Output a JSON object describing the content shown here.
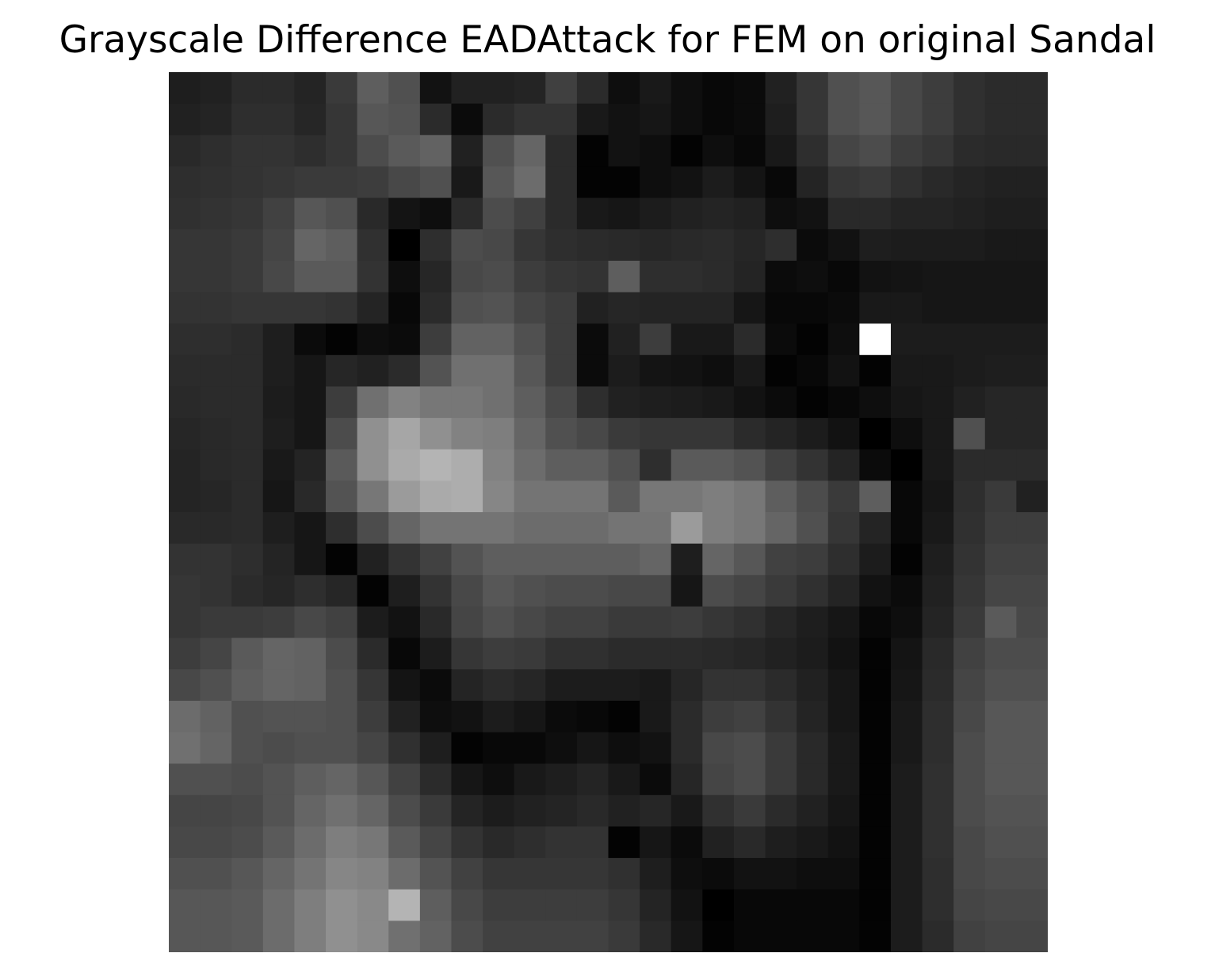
{
  "chart_data": {
    "type": "heatmap",
    "title": "Grayscale Difference EADAttack for FEM on original Sandal",
    "colormap": "gray",
    "grid": false,
    "axes_visible": false,
    "xlabel": "",
    "ylabel": "",
    "rows": 28,
    "cols": 28,
    "value_range": [
      0,
      255
    ],
    "values": [
      [
        30,
        33,
        43,
        43,
        36,
        58,
        94,
        80,
        18,
        33,
        33,
        36,
        64,
        43,
        14,
        25,
        14,
        8,
        11,
        33,
        54,
        80,
        87,
        72,
        61,
        48,
        43,
        43
      ],
      [
        33,
        36,
        46,
        46,
        38,
        54,
        87,
        83,
        43,
        11,
        43,
        51,
        51,
        25,
        18,
        22,
        14,
        8,
        11,
        30,
        54,
        80,
        87,
        72,
        61,
        48,
        43,
        43
      ],
      [
        41,
        46,
        51,
        51,
        46,
        54,
        76,
        90,
        98,
        33,
        80,
        101,
        43,
        3,
        18,
        14,
        3,
        14,
        8,
        25,
        46,
        69,
        76,
        61,
        54,
        43,
        41,
        41
      ],
      [
        46,
        48,
        51,
        54,
        58,
        58,
        61,
        72,
        80,
        25,
        87,
        108,
        43,
        3,
        3,
        14,
        18,
        28,
        20,
        8,
        36,
        54,
        58,
        48,
        41,
        36,
        33,
        33
      ],
      [
        48,
        51,
        54,
        65,
        87,
        80,
        41,
        20,
        14,
        43,
        76,
        64,
        43,
        25,
        22,
        28,
        33,
        36,
        33,
        14,
        18,
        41,
        41,
        36,
        36,
        33,
        30,
        30
      ],
      [
        54,
        54,
        58,
        69,
        101,
        94,
        48,
        0,
        46,
        76,
        72,
        54,
        46,
        43,
        41,
        38,
        41,
        43,
        38,
        46,
        11,
        18,
        30,
        28,
        28,
        28,
        25,
        25
      ],
      [
        54,
        54,
        58,
        72,
        90,
        90,
        51,
        14,
        38,
        72,
        76,
        61,
        54,
        51,
        94,
        46,
        46,
        43,
        36,
        11,
        14,
        8,
        18,
        20,
        22,
        22,
        22,
        22
      ],
      [
        51,
        51,
        54,
        54,
        54,
        51,
        36,
        8,
        43,
        80,
        83,
        69,
        61,
        33,
        38,
        36,
        36,
        36,
        22,
        8,
        8,
        11,
        25,
        25,
        22,
        22,
        22,
        22
      ],
      [
        46,
        46,
        43,
        30,
        11,
        3,
        14,
        11,
        61,
        98,
        98,
        80,
        61,
        11,
        33,
        61,
        25,
        25,
        43,
        11,
        3,
        14,
        255,
        28,
        28,
        28,
        28,
        28
      ],
      [
        43,
        43,
        43,
        30,
        22,
        38,
        33,
        43,
        83,
        112,
        112,
        87,
        61,
        11,
        28,
        20,
        18,
        14,
        25,
        3,
        8,
        18,
        3,
        25,
        25,
        28,
        30,
        30
      ],
      [
        41,
        43,
        43,
        28,
        22,
        61,
        112,
        130,
        119,
        119,
        112,
        94,
        72,
        46,
        33,
        30,
        28,
        25,
        18,
        11,
        3,
        8,
        14,
        22,
        25,
        33,
        38,
        38
      ],
      [
        38,
        41,
        43,
        30,
        22,
        76,
        144,
        166,
        144,
        130,
        126,
        101,
        80,
        72,
        58,
        54,
        54,
        54,
        43,
        36,
        28,
        18,
        0,
        14,
        25,
        80,
        38,
        38
      ],
      [
        36,
        41,
        43,
        25,
        36,
        90,
        144,
        170,
        180,
        173,
        130,
        108,
        94,
        94,
        80,
        46,
        90,
        90,
        83,
        65,
        51,
        36,
        11,
        0,
        25,
        43,
        43,
        43
      ],
      [
        36,
        38,
        43,
        22,
        41,
        83,
        119,
        155,
        170,
        173,
        134,
        116,
        116,
        116,
        90,
        119,
        119,
        126,
        119,
        94,
        76,
        58,
        94,
        8,
        22,
        46,
        58,
        33
      ],
      [
        41,
        41,
        43,
        30,
        22,
        46,
        76,
        101,
        116,
        116,
        116,
        108,
        108,
        108,
        116,
        116,
        155,
        126,
        119,
        101,
        80,
        54,
        36,
        8,
        25,
        48,
        61,
        61
      ],
      [
        51,
        51,
        46,
        36,
        22,
        3,
        33,
        51,
        65,
        83,
        94,
        94,
        94,
        94,
        94,
        101,
        30,
        101,
        87,
        65,
        61,
        46,
        28,
        3,
        30,
        51,
        65,
        65
      ],
      [
        54,
        51,
        43,
        38,
        46,
        38,
        3,
        30,
        51,
        72,
        87,
        80,
        76,
        76,
        72,
        72,
        22,
        76,
        69,
        58,
        48,
        36,
        18,
        11,
        33,
        54,
        69,
        69
      ],
      [
        54,
        58,
        58,
        61,
        72,
        65,
        28,
        18,
        41,
        69,
        80,
        72,
        65,
        65,
        58,
        58,
        61,
        54,
        48,
        38,
        30,
        22,
        8,
        14,
        36,
        58,
        90,
        72
      ],
      [
        61,
        69,
        90,
        101,
        98,
        76,
        43,
        8,
        28,
        54,
        61,
        58,
        48,
        48,
        43,
        43,
        43,
        41,
        38,
        33,
        28,
        18,
        3,
        20,
        41,
        65,
        76,
        76
      ],
      [
        72,
        80,
        94,
        101,
        98,
        80,
        54,
        20,
        11,
        36,
        43,
        38,
        28,
        28,
        28,
        25,
        38,
        51,
        51,
        43,
        33,
        22,
        3,
        22,
        43,
        69,
        80,
        80
      ],
      [
        108,
        98,
        80,
        83,
        83,
        80,
        61,
        33,
        14,
        18,
        28,
        22,
        11,
        8,
        3,
        25,
        43,
        61,
        65,
        51,
        36,
        22,
        3,
        25,
        46,
        72,
        87,
        87
      ],
      [
        112,
        101,
        80,
        76,
        80,
        80,
        69,
        48,
        30,
        3,
        8,
        8,
        14,
        22,
        14,
        18,
        43,
        72,
        76,
        58,
        41,
        25,
        3,
        25,
        46,
        76,
        87,
        87
      ],
      [
        80,
        80,
        76,
        83,
        94,
        101,
        87,
        65,
        43,
        22,
        14,
        25,
        30,
        36,
        25,
        11,
        38,
        69,
        76,
        58,
        41,
        25,
        3,
        28,
        48,
        76,
        87,
        87
      ],
      [
        69,
        69,
        72,
        83,
        101,
        112,
        101,
        76,
        58,
        36,
        28,
        33,
        36,
        41,
        33,
        38,
        25,
        48,
        58,
        43,
        33,
        22,
        3,
        28,
        48,
        76,
        83,
        83
      ],
      [
        72,
        72,
        76,
        90,
        108,
        126,
        119,
        90,
        69,
        51,
        41,
        46,
        51,
        51,
        3,
        22,
        11,
        33,
        41,
        30,
        25,
        18,
        3,
        28,
        48,
        72,
        80,
        80
      ],
      [
        80,
        80,
        87,
        101,
        116,
        134,
        130,
        108,
        83,
        65,
        54,
        54,
        54,
        54,
        48,
        30,
        14,
        11,
        18,
        18,
        14,
        14,
        3,
        28,
        46,
        72,
        76,
        76
      ],
      [
        87,
        87,
        90,
        108,
        126,
        144,
        137,
        180,
        94,
        72,
        61,
        61,
        61,
        61,
        54,
        36,
        18,
        0,
        8,
        8,
        8,
        8,
        3,
        28,
        46,
        69,
        72,
        72
      ],
      [
        87,
        87,
        90,
        108,
        126,
        144,
        137,
        112,
        98,
        76,
        65,
        65,
        65,
        65,
        58,
        41,
        22,
        3,
        8,
        8,
        8,
        8,
        3,
        28,
        43,
        65,
        69,
        69
      ]
    ]
  }
}
